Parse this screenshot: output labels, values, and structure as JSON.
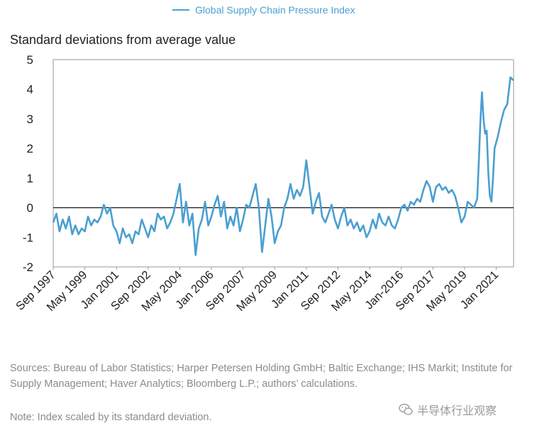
{
  "legend": {
    "label": "Global Supply Chain Pressure Index",
    "color": "#4a9fd1"
  },
  "y_axis_label": "Standard deviations from average value",
  "source_text": "Sources: Bureau of Labor Statistics; Harper Petersen Holding GmbH; Baltic Exchange; IHS Markit; Institute for Supply Management; Haver Analytics; Bloomberg L.P.; authors’ calculations.",
  "note_text": "Note: Index scaled by its standard deviation.",
  "watermark": {
    "text": "半导体行业观察",
    "icon": "wechat-logo-icon"
  },
  "chart_data": {
    "type": "line",
    "ylabel": "Standard deviations from average value",
    "ylim": [
      -2,
      5
    ],
    "yticks": [
      -2,
      -1,
      0,
      1,
      2,
      3,
      4,
      5
    ],
    "zero_line": true,
    "grid": false,
    "legend_position": "top-center",
    "xlim": [
      "1997-09",
      "2021-12"
    ],
    "xticks": [
      {
        "label": "Sep 1997",
        "date": "1997-09"
      },
      {
        "label": "May 1999",
        "date": "1999-05"
      },
      {
        "label": "Jan 2001",
        "date": "2001-01"
      },
      {
        "label": "Sep 2002",
        "date": "2002-09"
      },
      {
        "label": "May 2004",
        "date": "2004-05"
      },
      {
        "label": "Jan 2006",
        "date": "2006-01"
      },
      {
        "label": "Sep 2007",
        "date": "2007-09"
      },
      {
        "label": "May 2009",
        "date": "2009-05"
      },
      {
        "label": "Jan 2011",
        "date": "2011-01"
      },
      {
        "label": "Sep 2012",
        "date": "2012-09"
      },
      {
        "label": "May 2014",
        "date": "2014-05"
      },
      {
        "label": "Jan-2016",
        "date": "2016-01"
      },
      {
        "label": "Sep 2017",
        "date": "2017-09"
      },
      {
        "label": "May 2019",
        "date": "2019-05"
      },
      {
        "label": "Jan 2021",
        "date": "2021-01"
      }
    ],
    "series": [
      {
        "name": "Global Supply Chain Pressure Index",
        "color": "#4a9fd1",
        "points": [
          [
            "1997-09",
            -0.5
          ],
          [
            "1997-11",
            -0.2
          ],
          [
            "1998-01",
            -0.8
          ],
          [
            "1998-03",
            -0.4
          ],
          [
            "1998-05",
            -0.7
          ],
          [
            "1998-07",
            -0.3
          ],
          [
            "1998-09",
            -0.9
          ],
          [
            "1998-11",
            -0.6
          ],
          [
            "1999-01",
            -0.9
          ],
          [
            "1999-03",
            -0.7
          ],
          [
            "1999-05",
            -0.8
          ],
          [
            "1999-07",
            -0.3
          ],
          [
            "1999-09",
            -0.6
          ],
          [
            "1999-11",
            -0.4
          ],
          [
            "2000-01",
            -0.5
          ],
          [
            "2000-03",
            -0.3
          ],
          [
            "2000-05",
            0.1
          ],
          [
            "2000-07",
            -0.2
          ],
          [
            "2000-09",
            0.0
          ],
          [
            "2000-11",
            -0.6
          ],
          [
            "2001-01",
            -0.8
          ],
          [
            "2001-03",
            -1.2
          ],
          [
            "2001-05",
            -0.7
          ],
          [
            "2001-07",
            -1.0
          ],
          [
            "2001-09",
            -0.9
          ],
          [
            "2001-11",
            -1.2
          ],
          [
            "2002-01",
            -0.8
          ],
          [
            "2002-03",
            -0.9
          ],
          [
            "2002-05",
            -0.4
          ],
          [
            "2002-07",
            -0.7
          ],
          [
            "2002-09",
            -1.0
          ],
          [
            "2002-11",
            -0.6
          ],
          [
            "2003-01",
            -0.8
          ],
          [
            "2003-03",
            -0.2
          ],
          [
            "2003-05",
            -0.4
          ],
          [
            "2003-07",
            -0.3
          ],
          [
            "2003-09",
            -0.7
          ],
          [
            "2003-11",
            -0.5
          ],
          [
            "2004-01",
            -0.2
          ],
          [
            "2004-03",
            0.3
          ],
          [
            "2004-05",
            0.8
          ],
          [
            "2004-07",
            -0.5
          ],
          [
            "2004-09",
            0.2
          ],
          [
            "2004-11",
            -0.6
          ],
          [
            "2005-01",
            -0.2
          ],
          [
            "2005-03",
            -1.6
          ],
          [
            "2005-05",
            -0.7
          ],
          [
            "2005-07",
            -0.4
          ],
          [
            "2005-09",
            0.2
          ],
          [
            "2005-11",
            -0.6
          ],
          [
            "2006-01",
            -0.3
          ],
          [
            "2006-03",
            0.1
          ],
          [
            "2006-05",
            0.4
          ],
          [
            "2006-07",
            -0.3
          ],
          [
            "2006-09",
            0.2
          ],
          [
            "2006-11",
            -0.7
          ],
          [
            "2007-01",
            -0.3
          ],
          [
            "2007-03",
            -0.6
          ],
          [
            "2007-05",
            0.0
          ],
          [
            "2007-07",
            -0.8
          ],
          [
            "2007-09",
            -0.4
          ],
          [
            "2007-11",
            0.1
          ],
          [
            "2008-01",
            0.0
          ],
          [
            "2008-03",
            0.4
          ],
          [
            "2008-05",
            0.8
          ],
          [
            "2008-07",
            0.0
          ],
          [
            "2008-09",
            -1.5
          ],
          [
            "2008-11",
            -0.6
          ],
          [
            "2009-01",
            0.3
          ],
          [
            "2009-03",
            -0.3
          ],
          [
            "2009-05",
            -1.2
          ],
          [
            "2009-07",
            -0.8
          ],
          [
            "2009-09",
            -0.6
          ],
          [
            "2009-11",
            0.0
          ],
          [
            "2010-01",
            0.3
          ],
          [
            "2010-03",
            0.8
          ],
          [
            "2010-05",
            0.3
          ],
          [
            "2010-07",
            0.6
          ],
          [
            "2010-09",
            0.4
          ],
          [
            "2010-11",
            0.7
          ],
          [
            "2011-01",
            1.6
          ],
          [
            "2011-03",
            0.7
          ],
          [
            "2011-05",
            -0.2
          ],
          [
            "2011-07",
            0.2
          ],
          [
            "2011-09",
            0.5
          ],
          [
            "2011-11",
            -0.3
          ],
          [
            "2012-01",
            -0.5
          ],
          [
            "2012-03",
            -0.2
          ],
          [
            "2012-05",
            0.1
          ],
          [
            "2012-07",
            -0.4
          ],
          [
            "2012-09",
            -0.7
          ],
          [
            "2012-11",
            -0.3
          ],
          [
            "2013-01",
            0.0
          ],
          [
            "2013-03",
            -0.6
          ],
          [
            "2013-05",
            -0.4
          ],
          [
            "2013-07",
            -0.7
          ],
          [
            "2013-09",
            -0.5
          ],
          [
            "2013-11",
            -0.8
          ],
          [
            "2014-01",
            -0.6
          ],
          [
            "2014-03",
            -1.0
          ],
          [
            "2014-05",
            -0.8
          ],
          [
            "2014-07",
            -0.4
          ],
          [
            "2014-09",
            -0.7
          ],
          [
            "2014-11",
            -0.2
          ],
          [
            "2015-01",
            -0.5
          ],
          [
            "2015-03",
            -0.6
          ],
          [
            "2015-05",
            -0.3
          ],
          [
            "2015-07",
            -0.6
          ],
          [
            "2015-09",
            -0.7
          ],
          [
            "2015-11",
            -0.4
          ],
          [
            "2016-01",
            0.0
          ],
          [
            "2016-03",
            0.1
          ],
          [
            "2016-05",
            -0.1
          ],
          [
            "2016-07",
            0.2
          ],
          [
            "2016-09",
            0.1
          ],
          [
            "2016-11",
            0.3
          ],
          [
            "2017-01",
            0.2
          ],
          [
            "2017-03",
            0.6
          ],
          [
            "2017-05",
            0.9
          ],
          [
            "2017-07",
            0.7
          ],
          [
            "2017-09",
            0.2
          ],
          [
            "2017-11",
            0.7
          ],
          [
            "2018-01",
            0.8
          ],
          [
            "2018-03",
            0.6
          ],
          [
            "2018-05",
            0.7
          ],
          [
            "2018-07",
            0.5
          ],
          [
            "2018-09",
            0.6
          ],
          [
            "2018-11",
            0.4
          ],
          [
            "2019-01",
            0.0
          ],
          [
            "2019-03",
            -0.5
          ],
          [
            "2019-05",
            -0.3
          ],
          [
            "2019-07",
            0.2
          ],
          [
            "2019-09",
            0.1
          ],
          [
            "2019-11",
            0.0
          ],
          [
            "2020-01",
            0.3
          ],
          [
            "2020-02",
            1.5
          ],
          [
            "2020-03",
            2.9
          ],
          [
            "2020-04",
            3.9
          ],
          [
            "2020-05",
            3.0
          ],
          [
            "2020-06",
            2.5
          ],
          [
            "2020-07",
            2.6
          ],
          [
            "2020-08",
            1.2
          ],
          [
            "2020-09",
            0.4
          ],
          [
            "2020-10",
            0.2
          ],
          [
            "2020-11",
            1.0
          ],
          [
            "2020-12",
            2.0
          ],
          [
            "2021-02",
            2.4
          ],
          [
            "2021-04",
            2.9
          ],
          [
            "2021-06",
            3.3
          ],
          [
            "2021-08",
            3.5
          ],
          [
            "2021-10",
            4.4
          ],
          [
            "2021-12",
            4.3
          ]
        ]
      }
    ]
  }
}
